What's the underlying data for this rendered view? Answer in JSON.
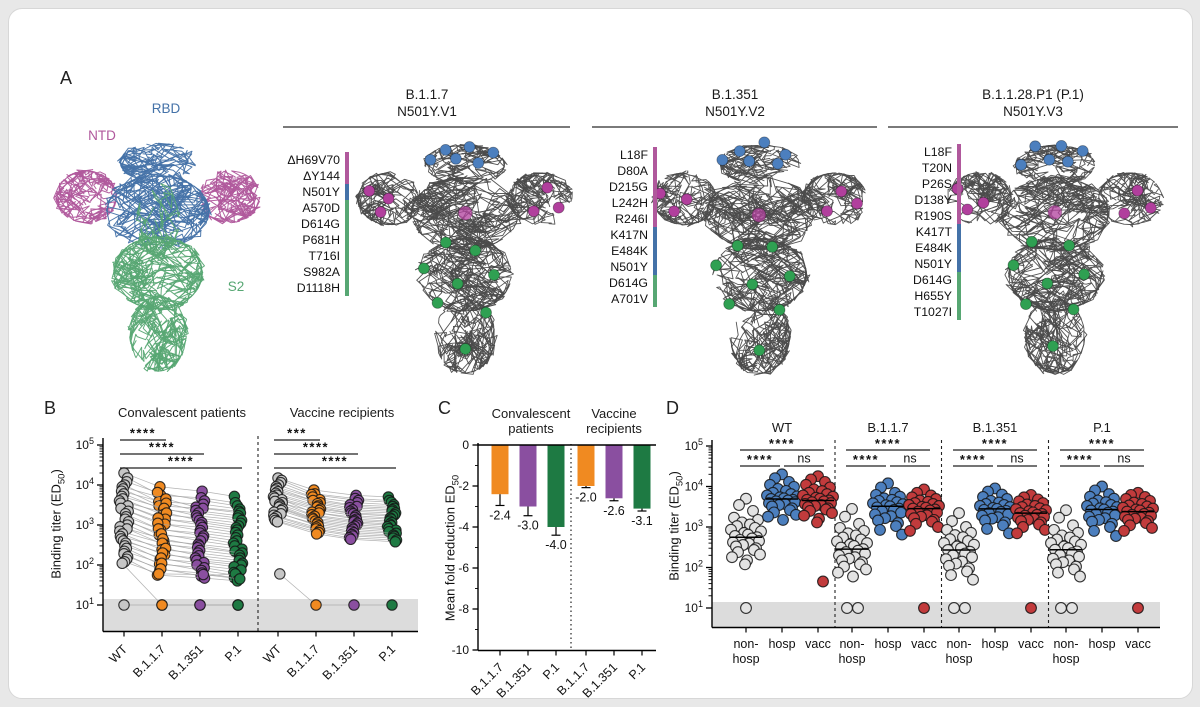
{
  "figure": {
    "panel_a": {
      "label": "A",
      "domain_labels": {
        "ntd": "NTD",
        "rbd": "RBD",
        "s2": "S2"
      },
      "variants": [
        {
          "name": "B.1.1.7",
          "clade": "N501Y.V1",
          "mutations": [
            "ΔH69V70",
            "ΔY144",
            "N501Y",
            "A570D",
            "D614G",
            "P681H",
            "T716I",
            "S982A",
            "D1118H"
          ],
          "mutation_domains": [
            "ntd",
            "ntd",
            "rbd",
            "s2",
            "s2",
            "s2",
            "s2",
            "s2",
            "s2"
          ]
        },
        {
          "name": "B.1.351",
          "clade": "N501Y.V2",
          "mutations": [
            "L18F",
            "D80A",
            "D215G",
            "L242H",
            "R246I",
            "K417N",
            "E484K",
            "N501Y",
            "D614G",
            "A701V"
          ],
          "mutation_domains": [
            "ntd",
            "ntd",
            "ntd",
            "ntd",
            "ntd",
            "rbd",
            "rbd",
            "rbd",
            "s2",
            "s2"
          ]
        },
        {
          "name": "B.1.1.28.P1 (P.1)",
          "clade": "N501Y.V3",
          "mutations": [
            "L18F",
            "T20N",
            "P26S",
            "D138Y",
            "R190S",
            "K417T",
            "E484K",
            "N501Y",
            "D614G",
            "H655Y",
            "T1027I"
          ],
          "mutation_domains": [
            "ntd",
            "ntd",
            "ntd",
            "ntd",
            "ntd",
            "rbd",
            "rbd",
            "rbd",
            "s2",
            "s2",
            "s2"
          ]
        }
      ]
    },
    "panel_b": {
      "label": "B"
    },
    "panel_c": {
      "label": "C"
    },
    "panel_d": {
      "label": "D"
    },
    "ylabel_binding": {
      "pre": "Binding titer (ED",
      "sub": "50",
      "post": ")"
    },
    "ylabel_fold": {
      "pre": "Mean fold reduction ED",
      "sub": "50",
      "post": ""
    }
  },
  "colors": {
    "ntd": "#b0589c",
    "rbd": "#4472a8",
    "s2": "#57a773",
    "structure": "#4b4b4b",
    "blob_ntd": "#b13f9d",
    "blob_rbd": "#4c7fbe",
    "blob_s2": "#2fa052",
    "variant_dots": {
      "WT": "#c6c6c6",
      "B.1.1.7": "#f08a21",
      "B.1.351": "#8a4fa0",
      "P.1": "#1e7a43"
    },
    "bars": [
      "#f08a21",
      "#8a4fa0",
      "#1e7a43"
    ],
    "cohort_dots": {
      "non-hosp": "#e3e3e3",
      "hosp": "#4c7fbe",
      "vacc": "#c23b3c"
    },
    "band": "#dcdcdc",
    "pair_line": "#a0a0a0",
    "axis": "#000000"
  },
  "chart_data": [
    {
      "id": "panel_b",
      "type": "scatter",
      "yscale": "log",
      "ylim": [
        10,
        100000
      ],
      "ylabel": "Binding titer (ED50)",
      "ytick_exponents": [
        5,
        4,
        3,
        2,
        1
      ],
      "categories": [
        "WT",
        "B.1.1.7",
        "B.1.351",
        "P.1"
      ],
      "baseline_value": 10,
      "groups": [
        {
          "title": "Convalescent patients",
          "significance": [
            "****",
            "****",
            "****"
          ],
          "pairs": [
            [
              20000,
              9000,
              7000,
              5200
            ],
            [
              15000,
              5500,
              4800,
              3600
            ],
            [
              12000,
              6500,
              4000,
              3000
            ],
            [
              10000,
              3800,
              3300,
              2500
            ],
            [
              9000,
              4500,
              2800,
              2200
            ],
            [
              8000,
              3000,
              2600,
              2000
            ],
            [
              7000,
              3500,
              2300,
              1700
            ],
            [
              6000,
              2400,
              2000,
              1500
            ],
            [
              5200,
              2600,
              1700,
              1300
            ],
            [
              4500,
              1800,
              1500,
              1100
            ],
            [
              4000,
              2000,
              1300,
              950
            ],
            [
              3500,
              1400,
              1150,
              850
            ],
            [
              3000,
              1500,
              1000,
              750
            ],
            [
              2600,
              1050,
              870,
              650
            ],
            [
              2200,
              1100,
              730,
              560
            ],
            [
              1900,
              760,
              630,
              480
            ],
            [
              1600,
              800,
              530,
              400
            ],
            [
              1400,
              560,
              470,
              350
            ],
            [
              1200,
              600,
              400,
              300
            ],
            [
              1000,
              400,
              330,
              250
            ],
            [
              900,
              450,
              300,
              220
            ],
            [
              800,
              320,
              270,
              200
            ],
            [
              700,
              350,
              230,
              175
            ],
            [
              600,
              240,
              200,
              150
            ],
            [
              520,
              260,
              170,
              130
            ],
            [
              450,
              180,
              150,
              110
            ],
            [
              400,
              200,
              130,
              100
            ],
            [
              350,
              140,
              115,
              90
            ],
            [
              300,
              150,
              100,
              75
            ],
            [
              260,
              105,
              85,
              65
            ],
            [
              220,
              110,
              73,
              55
            ],
            [
              190,
              76,
              63,
              48
            ],
            [
              160,
              80,
              53,
              60
            ],
            [
              140,
              56,
              47,
              40
            ],
            [
              120,
              60,
              58,
              45
            ],
            [
              110,
              10,
              10,
              10
            ],
            [
              10,
              10,
              10,
              10
            ]
          ]
        },
        {
          "title": "Vaccine recipients",
          "significance": [
            "***",
            "****",
            "****"
          ],
          "pairs": [
            [
              15000,
              7500,
              5500,
              5000
            ],
            [
              13000,
              6000,
              4600,
              4100
            ],
            [
              11500,
              5800,
              4100,
              3700
            ],
            [
              10000,
              5000,
              3600,
              3200
            ],
            [
              9000,
              4300,
              3200,
              2900
            ],
            [
              8200,
              4100,
              2900,
              2600
            ],
            [
              7500,
              3600,
              2700,
              2400
            ],
            [
              6800,
              3400,
              2400,
              2200
            ],
            [
              6200,
              3000,
              2200,
              2000
            ],
            [
              5600,
              2800,
              2000,
              1800
            ],
            [
              5100,
              2500,
              1900,
              1650
            ],
            [
              4700,
              2300,
              1700,
              1500
            ],
            [
              4300,
              2100,
              1550,
              1400
            ],
            [
              3900,
              2000,
              1400,
              1250
            ],
            [
              3600,
              1800,
              1300,
              1150
            ],
            [
              3300,
              1650,
              1200,
              1050
            ],
            [
              3000,
              1500,
              1100,
              970
            ],
            [
              2800,
              1400,
              1000,
              900
            ],
            [
              2500,
              1250,
              930,
              810
            ],
            [
              2300,
              1150,
              850,
              740
            ],
            [
              2100,
              1050,
              780,
              680
            ],
            [
              1900,
              950,
              700,
              620
            ],
            [
              1750,
              880,
              640,
              560
            ],
            [
              1600,
              800,
              580,
              520
            ],
            [
              1450,
              720,
              530,
              470
            ],
            [
              1300,
              650,
              480,
              420
            ],
            [
              1200,
              600,
              440,
              380
            ],
            [
              60,
              10,
              10,
              10
            ]
          ]
        }
      ]
    },
    {
      "id": "panel_c",
      "type": "bar",
      "ylim": [
        -10,
        0
      ],
      "ylabel": "Mean fold reduction ED50",
      "yticks": [
        0,
        -2,
        -4,
        -6,
        -8,
        -10
      ],
      "categories": [
        "B.1.1.7",
        "B.1.351",
        "P.1"
      ],
      "series": [
        {
          "name": "Convalescent patients",
          "title_lines": [
            "Convalescent",
            "patients"
          ],
          "values": [
            -2.4,
            -3.0,
            -4.0
          ],
          "errors": [
            0.55,
            0.45,
            0.4
          ],
          "labels": [
            "-2.4",
            "-3.0",
            "-4.0"
          ]
        },
        {
          "name": "Vaccine recipients",
          "title_lines": [
            "Vaccine",
            "recipients"
          ],
          "values": [
            -2.0,
            -2.6,
            -3.1
          ],
          "errors": [
            0.08,
            0.12,
            0.12
          ],
          "labels": [
            "-2.0",
            "-2.6",
            "-3.1"
          ]
        }
      ]
    },
    {
      "id": "panel_d",
      "type": "scatter",
      "yscale": "log",
      "ylim": [
        10,
        100000
      ],
      "ylabel": "Binding titer (ED50)",
      "ytick_exponents": [
        5,
        4,
        3,
        2,
        1
      ],
      "variants": [
        "WT",
        "B.1.1.7",
        "B.1.351",
        "P.1"
      ],
      "cohorts": [
        "non-hosp",
        "hosp",
        "vacc"
      ],
      "cohort_tick_lines": [
        [
          "non-",
          "hosp"
        ],
        [
          "hosp"
        ],
        [
          "vacc"
        ]
      ],
      "significance": {
        "nonhosp_vs_hosp": "****",
        "nonhosp_vs_vacc": "****",
        "hosp_vs_vacc": "ns"
      },
      "values": {
        "WT": {
          "non-hosp": [
            10,
            120,
            150,
            180,
            210,
            240,
            270,
            300,
            330,
            360,
            390,
            420,
            450,
            480,
            520,
            560,
            600,
            650,
            710,
            780,
            860,
            950,
            1050,
            1150,
            1300,
            1500,
            1700,
            2500,
            3500,
            5000
          ],
          "hosp": [
            1500,
            1800,
            2000,
            2300,
            2600,
            2900,
            3200,
            3500,
            3700,
            3900,
            4100,
            4300,
            4500,
            4700,
            4900,
            5100,
            5400,
            5700,
            6000,
            6500,
            7000,
            7800,
            8700,
            9800,
            11000,
            13000,
            16000,
            20000
          ],
          "vacc": [
            45,
            1300,
            1600,
            1900,
            2200,
            2500,
            2700,
            2900,
            3100,
            3300,
            3500,
            3700,
            3900,
            4100,
            4300,
            4500,
            4700,
            5000,
            5300,
            5600,
            6000,
            6500,
            7000,
            7700,
            8500,
            9500,
            11000,
            13000,
            15000,
            18000
          ]
        },
        "B.1.1.7": {
          "non-hosp": [
            10,
            10,
            60,
            75,
            90,
            105,
            120,
            135,
            150,
            165,
            180,
            200,
            220,
            240,
            260,
            285,
            310,
            340,
            370,
            400,
            440,
            490,
            550,
            620,
            700,
            800,
            950,
            1200,
            1800,
            2800
          ],
          "hosp": [
            650,
            850,
            1050,
            1250,
            1450,
            1650,
            1850,
            2050,
            2250,
            2450,
            2650,
            2850,
            3050,
            3250,
            3450,
            3650,
            3850,
            4100,
            4400,
            4700,
            5100,
            5600,
            6200,
            7000,
            9500,
            12000
          ],
          "vacc": [
            10,
            800,
            1000,
            1200,
            1350,
            1500,
            1650,
            1800,
            1950,
            2100,
            2250,
            2400,
            2550,
            2700,
            2850,
            3000,
            3150,
            3300,
            3500,
            3700,
            3900,
            4200,
            4500,
            4900,
            5400,
            6000,
            7000,
            8500
          ]
        },
        "B.1.351": {
          "non-hosp": [
            10,
            10,
            50,
            65,
            80,
            95,
            110,
            125,
            140,
            160,
            180,
            200,
            220,
            245,
            270,
            300,
            330,
            365,
            400,
            450,
            500,
            560,
            630,
            720,
            850,
            1000,
            1400,
            2200
          ],
          "hosp": [
            700,
            900,
            1100,
            1300,
            1450,
            1600,
            1750,
            1900,
            2050,
            2200,
            2350,
            2500,
            2650,
            2800,
            2950,
            3100,
            3300,
            3500,
            3700,
            4000,
            4400,
            4900,
            5500,
            6300,
            7500,
            9000
          ],
          "vacc": [
            10,
            700,
            850,
            1000,
            1150,
            1300,
            1400,
            1500,
            1600,
            1700,
            1800,
            1900,
            2000,
            2100,
            2200,
            2300,
            2450,
            2600,
            2750,
            2900,
            3100,
            3300,
            3600,
            3900,
            4300,
            4800,
            5400,
            6200
          ]
        },
        "P.1": {
          "non-hosp": [
            10,
            10,
            60,
            75,
            90,
            105,
            120,
            135,
            150,
            165,
            185,
            205,
            225,
            250,
            275,
            300,
            330,
            365,
            400,
            440,
            490,
            550,
            620,
            720,
            850,
            1100,
            1700,
            2600
          ],
          "hosp": [
            600,
            800,
            1000,
            1200,
            1350,
            1500,
            1650,
            1800,
            1950,
            2100,
            2250,
            2400,
            2550,
            2700,
            2900,
            3100,
            3300,
            3500,
            3800,
            4100,
            4500,
            5000,
            5600,
            6500,
            8000,
            10000
          ],
          "vacc": [
            10,
            800,
            950,
            1100,
            1250,
            1400,
            1500,
            1600,
            1700,
            1800,
            1900,
            2000,
            2100,
            2250,
            2400,
            2550,
            2700,
            2850,
            3000,
            3200,
            3400,
            3700,
            4000,
            4400,
            4900,
            5500,
            6200,
            7000
          ]
        }
      }
    }
  ]
}
